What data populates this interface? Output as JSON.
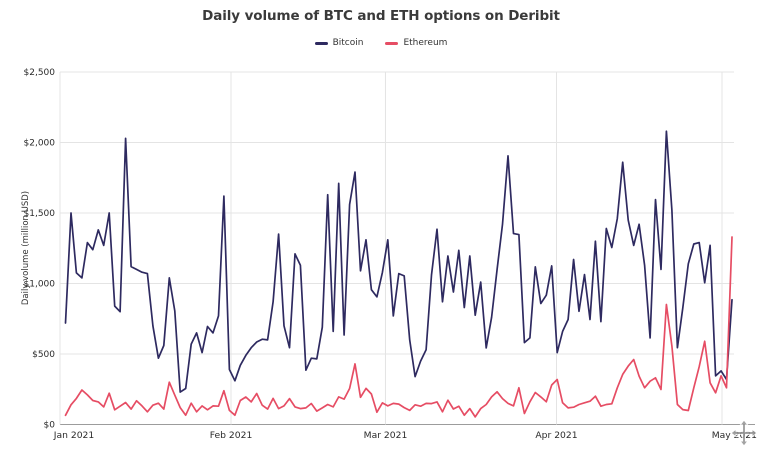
{
  "header": {
    "title": "Daily volume of BTC and ETH options on Deribit"
  },
  "legend": {
    "position": "top",
    "items": [
      {
        "label": "Bitcoin",
        "color": "#2e2a60"
      },
      {
        "label": "Ethereum",
        "color": "#e64d64"
      }
    ]
  },
  "y_axis": {
    "title": "Daily volume (million USD)",
    "tick_labels": [
      "$2,500",
      "$2,000",
      "$1,500",
      "$1,000",
      "$500",
      "$0"
    ]
  },
  "x_axis": {
    "tick_labels": [
      "Jan 2021",
      "Feb 2021",
      "Mar 2021",
      "Apr 2021",
      "May 2021"
    ]
  },
  "icons": {
    "move_icon": "four-way-move-drag-handle"
  },
  "chart_data": {
    "type": "line",
    "title": "Daily volume of BTC and ETH options on Deribit",
    "xlabel": "",
    "ylabel": "Daily volume (million USD)",
    "ylim": [
      0,
      2500
    ],
    "y_tick_step": 500,
    "grid": true,
    "legend_position": "top",
    "x_unit": "day",
    "x_range": "Jan 2021 - early May 2021",
    "x_tick_labels": [
      "Jan 2021",
      "Feb 2021",
      "Mar 2021",
      "Apr 2021",
      "May 2021"
    ],
    "x_tick_day_offsets": [
      0,
      31,
      59,
      90,
      120
    ],
    "series": [
      {
        "name": "Bitcoin",
        "color": "#2e2a60",
        "values": [
          720,
          1500,
          1075,
          1040,
          1290,
          1240,
          1380,
          1270,
          1500,
          840,
          800,
          2030,
          1120,
          1100,
          1080,
          1070,
          700,
          470,
          560,
          1040,
          805,
          230,
          255,
          570,
          650,
          510,
          695,
          650,
          770,
          1620,
          390,
          310,
          420,
          490,
          545,
          585,
          605,
          600,
          870,
          1350,
          700,
          545,
          1210,
          1130,
          385,
          470,
          465,
          690,
          1630,
          660,
          1710,
          635,
          1560,
          1790,
          1090,
          1310,
          956,
          905,
          1079,
          1310,
          770,
          1070,
          1054,
          600,
          340,
          450,
          530,
          1060,
          1385,
          870,
          1195,
          940,
          1235,
          830,
          1195,
          775,
          1010,
          543,
          760,
          1100,
          1420,
          1905,
          1354,
          1347,
          581,
          614,
          1118,
          858,
          917,
          1125,
          510,
          660,
          745,
          1170,
          803,
          1063,
          745,
          1300,
          730,
          1390,
          1255,
          1460,
          1860,
          1450,
          1270,
          1420,
          1130,
          614,
          1595,
          1100,
          2080,
          1520,
          545,
          827,
          1140,
          1280,
          1290,
          1005,
          1270,
          345,
          380,
          320,
          885
        ]
      },
      {
        "name": "Ethereum",
        "color": "#e64d64",
        "values": [
          65,
          140,
          185,
          245,
          210,
          170,
          160,
          125,
          222,
          104,
          130,
          156,
          109,
          168,
          132,
          90,
          137,
          151,
          109,
          300,
          208,
          120,
          66,
          151,
          90,
          132,
          104,
          132,
          130,
          240,
          100,
          66,
          170,
          195,
          160,
          220,
          137,
          109,
          185,
          113,
          132,
          184,
          125,
          113,
          118,
          149,
          95,
          118,
          142,
          125,
          196,
          180,
          255,
          430,
          193,
          256,
          216,
          87,
          153,
          132,
          150,
          145,
          120,
          100,
          140,
          130,
          150,
          148,
          160,
          90,
          172,
          110,
          130,
          66,
          113,
          54,
          113,
          142,
          196,
          232,
          184,
          150,
          132,
          260,
          78,
          161,
          227,
          196,
          161,
          280,
          319,
          154,
          118,
          123,
          142,
          154,
          165,
          201,
          130,
          142,
          147,
          260,
          355,
          414,
          461,
          343,
          260,
          307,
          331,
          248,
          851,
          556,
          142,
          106,
          99,
          260,
          410,
          590,
          296,
          225,
          345,
          260,
          1330
        ]
      }
    ]
  }
}
